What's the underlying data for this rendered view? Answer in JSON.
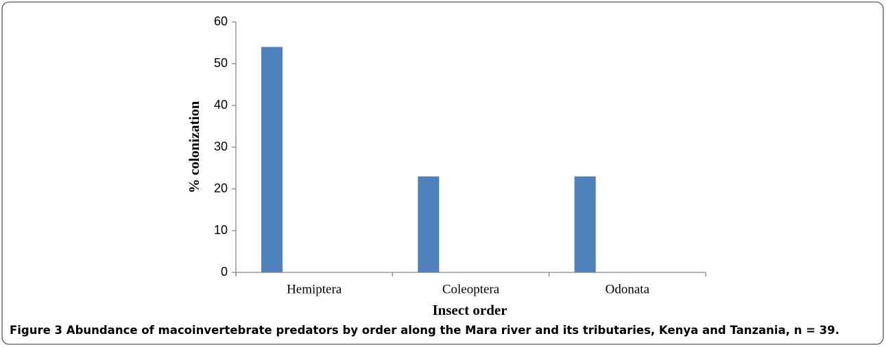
{
  "chart_data": {
    "type": "bar",
    "categories": [
      "Hemiptera",
      "Coleoptera",
      "Odonata"
    ],
    "values": [
      54,
      23,
      23
    ],
    "color": "#4f81bd",
    "ylim": [
      0,
      60
    ],
    "yticks": [
      0,
      10,
      20,
      30,
      40,
      50,
      60
    ],
    "grid": false,
    "ylabel": "% colonization",
    "xlabel": "Insect order",
    "figure_label": "Figure 3",
    "caption": "Abundance of macoinvertebrate predators by order along the Mara river and its tributaries, Kenya and Tanzania, n = 39."
  }
}
